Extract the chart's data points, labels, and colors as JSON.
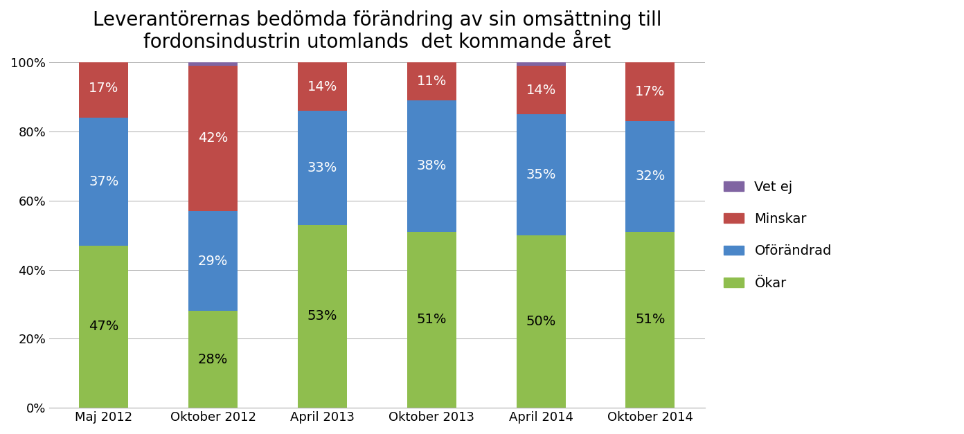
{
  "title": "Leverantörernas bedömda förändring av sin omsättning till\nfordonsindustrin utomlands  det kommande året",
  "categories": [
    "Maj 2012",
    "Oktober 2012",
    "April 2013",
    "Oktober 2013",
    "April 2014",
    "Oktober 2014"
  ],
  "series": {
    "Ökar": [
      47,
      28,
      53,
      51,
      50,
      51
    ],
    "Oförändrad": [
      37,
      29,
      33,
      38,
      35,
      32
    ],
    "Minskar": [
      17,
      42,
      14,
      11,
      14,
      17
    ],
    "Vet ej": [
      0,
      1,
      0,
      0,
      1,
      0
    ]
  },
  "colors": {
    "Ökar": "#8fbe4e",
    "Oförändrad": "#4a86c8",
    "Minskar": "#be4b48",
    "Vet ej": "#8064a2"
  },
  "text_colors": {
    "Ökar": "#000000",
    "Oförändrad": "#ffffff",
    "Minskar": "#ffffff",
    "Vet ej": "#ffffff"
  },
  "legend_order": [
    "Vet ej",
    "Minskar",
    "Oförändrad",
    "Ökar"
  ],
  "ylim": [
    0,
    100
  ],
  "yticks": [
    0,
    20,
    40,
    60,
    80,
    100
  ],
  "ytick_labels": [
    "0%",
    "20%",
    "40%",
    "60%",
    "80%",
    "100%"
  ],
  "title_fontsize": 20,
  "label_fontsize": 14,
  "tick_fontsize": 13,
  "legend_fontsize": 14,
  "bar_width": 0.45,
  "figsize": [
    13.92,
    6.27
  ],
  "dpi": 100,
  "background_color": "#ffffff"
}
